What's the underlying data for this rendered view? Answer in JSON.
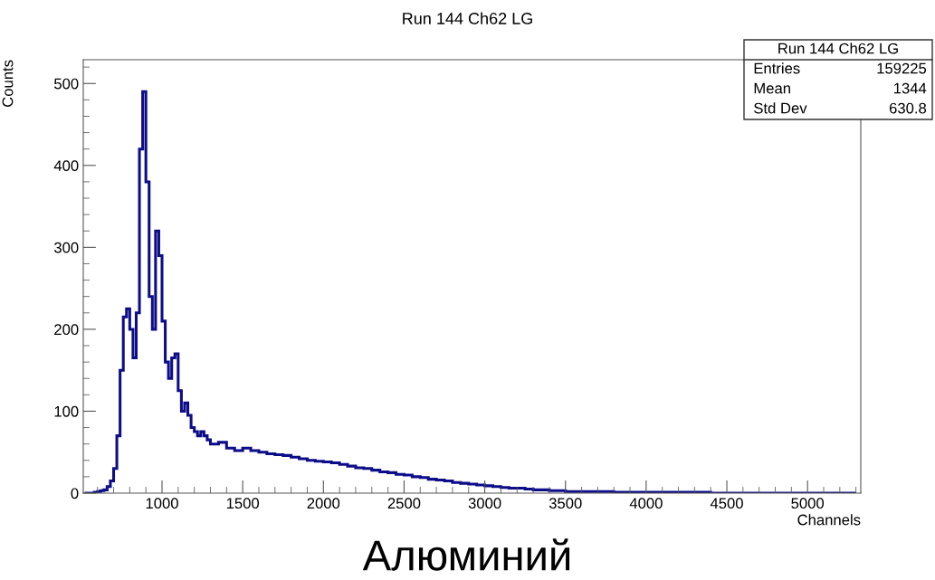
{
  "chart_data": {
    "type": "histogram",
    "title": "Run 144 Ch62 LG",
    "xlabel": "Channels",
    "ylabel": "Counts",
    "color": "#0d0d8a",
    "bins": [
      520,
      540,
      560,
      580,
      600,
      620,
      640,
      660,
      680,
      700,
      720,
      740,
      760,
      780,
      800,
      820,
      840,
      860,
      880,
      900,
      920,
      940,
      960,
      980,
      1000,
      1020,
      1040,
      1060,
      1080,
      1100,
      1120,
      1140,
      1160,
      1180,
      1200,
      1220,
      1240,
      1260,
      1280,
      1300,
      1350,
      1400,
      1450,
      1500,
      1550,
      1600,
      1650,
      1700,
      1750,
      1800,
      1850,
      1900,
      1950,
      2000,
      2050,
      2100,
      2150,
      2200,
      2250,
      2300,
      2350,
      2400,
      2450,
      2500,
      2550,
      2600,
      2650,
      2700,
      2750,
      2800,
      2850,
      2900,
      2950,
      3000,
      3050,
      3100,
      3150,
      3200,
      3250,
      3300,
      3350,
      3400,
      3450,
      3500,
      3600,
      3700,
      3800,
      3900,
      4000,
      4100,
      4200,
      4300,
      4400,
      4500,
      4600,
      4700,
      4800,
      4900,
      5000,
      5100,
      5200,
      5300
    ],
    "values": [
      0,
      0,
      0,
      1,
      2,
      3,
      4,
      8,
      15,
      30,
      70,
      150,
      215,
      225,
      200,
      165,
      220,
      420,
      490,
      380,
      240,
      200,
      320,
      290,
      210,
      160,
      140,
      165,
      170,
      125,
      100,
      110,
      95,
      80,
      75,
      70,
      75,
      70,
      65,
      60,
      62,
      55,
      52,
      55,
      52,
      50,
      48,
      47,
      46,
      44,
      42,
      40,
      39,
      38,
      37,
      35,
      33,
      31,
      30,
      28,
      26,
      25,
      23,
      22,
      20,
      19,
      17,
      16,
      15,
      13,
      12,
      11,
      10,
      9,
      8,
      7,
      6,
      6,
      5,
      4,
      4,
      3,
      3,
      2,
      2,
      2,
      1,
      1,
      1,
      1,
      1,
      1,
      0,
      0,
      0,
      0,
      0,
      0,
      0,
      0,
      0
    ],
    "xlim": [
      512,
      5330
    ],
    "ylim": [
      0,
      529
    ],
    "xticks": [
      1000,
      1500,
      2000,
      2500,
      3000,
      3500,
      4000,
      4500,
      5000
    ],
    "yticks": [
      0,
      100,
      200,
      300,
      400,
      500
    ],
    "grid": false,
    "legend": false,
    "annotations": [
      "Run 144 Ch62 LG",
      "Entries",
      "159225",
      "Mean",
      "1344",
      "Std Dev",
      "630.8",
      "Алюминий"
    ]
  }
}
